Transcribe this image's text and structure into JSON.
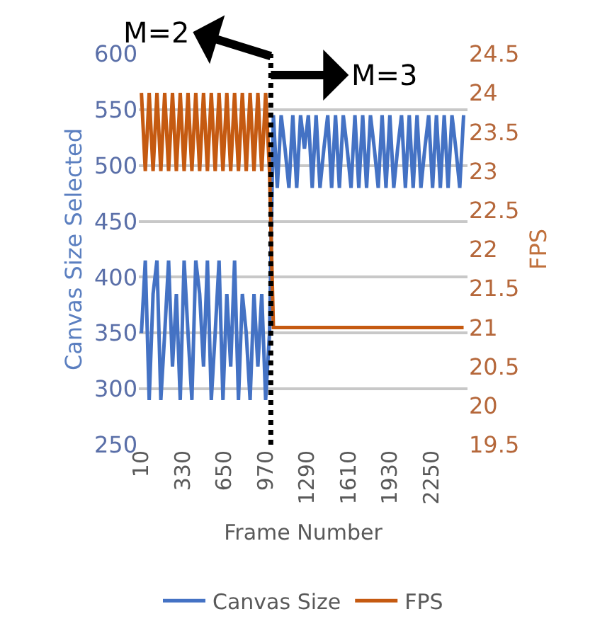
{
  "chart_data": {
    "type": "line",
    "xlabel": "Frame Number",
    "ylabel": "Canvas Size Selected",
    "y2label": "FPS",
    "x": [
      10,
      40,
      70,
      100,
      130,
      160,
      190,
      220,
      250,
      280,
      310,
      340,
      370,
      400,
      430,
      460,
      490,
      520,
      550,
      580,
      610,
      640,
      670,
      700,
      730,
      760,
      790,
      820,
      850,
      880,
      910,
      940,
      970,
      1000,
      1030,
      1060,
      1090,
      1120,
      1150,
      1180,
      1210,
      1240,
      1270,
      1300,
      1330,
      1360,
      1390,
      1420,
      1450,
      1480,
      1510,
      1540,
      1570,
      1600,
      1630,
      1660,
      1690,
      1720,
      1750,
      1780,
      1810,
      1840,
      1870,
      1900,
      1930,
      1960,
      1990,
      2020,
      2050,
      2080,
      2110,
      2140,
      2170,
      2200,
      2230,
      2260,
      2290,
      2320,
      2350,
      2380,
      2410,
      2440,
      2470,
      2500
    ],
    "series": [
      {
        "name": "Canvas Size",
        "color": "#4472c4",
        "values": [
          350,
          415,
          290,
          385,
          415,
          290,
          350,
          415,
          320,
          385,
          290,
          415,
          350,
          290,
          415,
          385,
          320,
          415,
          290,
          350,
          415,
          290,
          385,
          320,
          415,
          290,
          385,
          350,
          290,
          385,
          320,
          385,
          290,
          350,
          545,
          480,
          545,
          515,
          480,
          545,
          480,
          545,
          515,
          545,
          480,
          545,
          480,
          515,
          545,
          480,
          545,
          480,
          545,
          515,
          480,
          545,
          480,
          545,
          480,
          545,
          515,
          480,
          545,
          480,
          545,
          480,
          515,
          545,
          480,
          545,
          480,
          545,
          480,
          515,
          545,
          480,
          545,
          480,
          545,
          480,
          545,
          515,
          480,
          545
        ]
      },
      {
        "name": "FPS",
        "color": "#c55a11",
        "axis": "y2",
        "values": [
          24,
          23,
          24,
          23,
          24,
          23,
          24,
          23,
          24,
          23,
          24,
          23,
          24,
          23,
          24,
          23,
          24,
          23,
          24,
          23,
          24,
          23,
          24,
          23,
          24,
          23,
          24,
          23,
          24,
          23,
          24,
          23,
          24,
          23,
          21,
          21,
          21,
          21,
          21,
          21,
          21,
          21,
          21,
          21,
          21,
          21,
          21,
          21,
          21,
          21,
          21,
          21,
          21,
          21,
          21,
          21,
          21,
          21,
          21,
          21,
          21,
          21,
          21,
          21,
          21,
          21,
          21,
          21,
          21,
          21,
          21,
          21,
          21,
          21,
          21,
          21,
          21,
          21,
          21,
          21,
          21,
          21,
          21,
          21
        ]
      }
    ],
    "xlim": [
      -10,
      2530
    ],
    "xticks": [
      10,
      330,
      650,
      970,
      1290,
      1610,
      1930,
      2250
    ],
    "ylim": [
      250,
      600
    ],
    "yticks": [
      250,
      300,
      350,
      400,
      450,
      500,
      550,
      600
    ],
    "y2lim": [
      19.5,
      24.5
    ],
    "y2ticks": [
      19.5,
      20,
      20.5,
      21,
      21.5,
      22,
      22.5,
      23,
      23.5,
      24,
      24.5
    ],
    "ref_lines": [
      {
        "axis": "x",
        "value": 1010,
        "color": "#000000",
        "line_style": "dotted"
      }
    ],
    "annotations": [
      {
        "text": "M=2",
        "x": 1010,
        "y": 598
      },
      {
        "text": "M=3",
        "x": 1010,
        "y": 581
      }
    ],
    "grid": "y",
    "legend": "bottom",
    "marker": "none",
    "line_style": "solid"
  }
}
